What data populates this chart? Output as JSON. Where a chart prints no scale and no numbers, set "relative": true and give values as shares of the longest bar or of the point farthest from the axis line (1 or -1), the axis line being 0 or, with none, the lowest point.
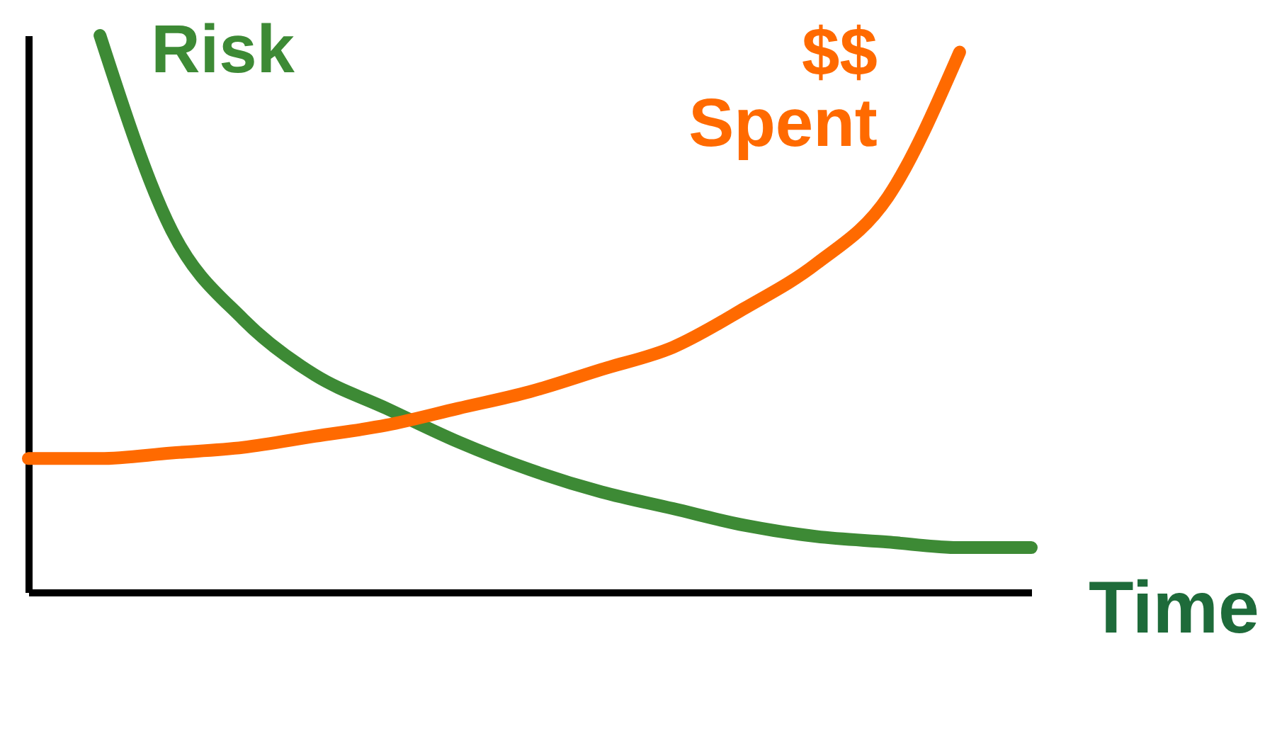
{
  "chart_data": {
    "type": "line",
    "relative": true,
    "xlabel": "Time",
    "tick_labels": false,
    "grid": false,
    "line_style": "solid",
    "categories": [
      null,
      null,
      null,
      null,
      null,
      null,
      null,
      null,
      null,
      null,
      null,
      null,
      null,
      null,
      null
    ],
    "series": [
      {
        "name": "Risk",
        "color": "#3d8a35",
        "values": [
          null,
          1.0,
          0.65,
          0.49,
          0.39,
          0.33,
          0.27,
          0.22,
          0.18,
          0.15,
          0.12,
          0.1,
          0.09,
          0.08,
          0.08
        ]
      },
      {
        "name": "$$ Spent",
        "color": "#ff6a00",
        "values": [
          0.24,
          0.24,
          0.25,
          0.26,
          0.28,
          0.3,
          0.33,
          0.36,
          0.4,
          0.44,
          0.51,
          0.59,
          0.71,
          0.97,
          null
        ]
      }
    ]
  }
}
